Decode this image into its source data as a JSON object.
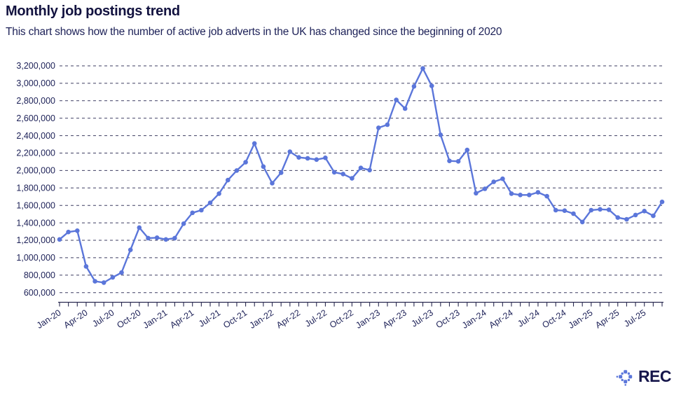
{
  "header": {
    "title": "Monthly job postings trend",
    "subtitle": "This chart shows how the number of active job adverts in the UK has changed since the beginning of 2020"
  },
  "logo": {
    "text": "REC",
    "icon": "rec-diamond-mark",
    "color": "#5B76DA",
    "text_color": "#15154A"
  },
  "colors": {
    "line": "#5B76DA",
    "point": "#5B76DA",
    "grid": "#3E3E62",
    "axis": "#2A2A50",
    "tick_label": "#1C2057",
    "title": "#12123F",
    "subtitle": "#1C2057",
    "background": "#FFFFFF"
  },
  "chart_data": {
    "type": "line",
    "title": "Monthly job postings trend",
    "xlabel": "",
    "ylabel": "",
    "legend": "none",
    "grid": "horizontal dashed",
    "ylim": [
      600000,
      3200000
    ],
    "y_tick_step": 200000,
    "y_tick_labels": [
      "600,000",
      "800,000",
      "1,000,000",
      "1,200,000",
      "1,400,000",
      "1,600,000",
      "1,800,000",
      "2,000,000",
      "2,200,000",
      "2,400,000",
      "2,600,000",
      "2,800,000",
      "3,000,000",
      "3,200,000"
    ],
    "x_label_every": 3,
    "x_labeled_ticks": [
      "Jan-20",
      "Apr-20",
      "Jul-20",
      "Oct-20",
      "Jan-21",
      "Apr-21",
      "Jul-21",
      "Oct-21",
      "Jan-22",
      "Apr-22",
      "Jul-22",
      "Oct-22",
      "Jan-23",
      "Apr-23",
      "Jul-23",
      "Oct-23",
      "Jan-24",
      "Apr-24",
      "Jul-24",
      "Oct-24",
      "Jan-25",
      "Apr-25",
      "Jul-25"
    ],
    "x": [
      "Jan-20",
      "Feb-20",
      "Mar-20",
      "Apr-20",
      "May-20",
      "Jun-20",
      "Jul-20",
      "Aug-20",
      "Sep-20",
      "Oct-20",
      "Nov-20",
      "Dec-20",
      "Jan-21",
      "Feb-21",
      "Mar-21",
      "Apr-21",
      "May-21",
      "Jun-21",
      "Jul-21",
      "Aug-21",
      "Sep-21",
      "Oct-21",
      "Nov-21",
      "Dec-21",
      "Jan-22",
      "Feb-22",
      "Mar-22",
      "Apr-22",
      "May-22",
      "Jun-22",
      "Jul-22",
      "Aug-22",
      "Sep-22",
      "Oct-22",
      "Nov-22",
      "Dec-22",
      "Jan-23",
      "Feb-23",
      "Mar-23",
      "Apr-23",
      "May-23",
      "Jun-23",
      "Jul-23",
      "Aug-23",
      "Sep-23",
      "Oct-23",
      "Nov-23",
      "Dec-23",
      "Jan-24",
      "Feb-24",
      "Mar-24",
      "Apr-24",
      "May-24",
      "Jun-24",
      "Jul-24",
      "Aug-24",
      "Sep-24",
      "Oct-24",
      "Nov-24",
      "Dec-24",
      "Jan-25",
      "Feb-25",
      "Mar-25",
      "Apr-25",
      "May-25",
      "Jun-25",
      "Jul-25",
      "Aug-25",
      "Sep-25"
    ],
    "values": [
      1210000,
      1295000,
      1310000,
      900000,
      730000,
      715000,
      775000,
      830000,
      1090000,
      1345000,
      1225000,
      1230000,
      1210000,
      1225000,
      1390000,
      1515000,
      1545000,
      1630000,
      1735000,
      1890000,
      2000000,
      2095000,
      2310000,
      2045000,
      1855000,
      1975000,
      2215000,
      2150000,
      2140000,
      2125000,
      2145000,
      1980000,
      1960000,
      1910000,
      2030000,
      2005000,
      2490000,
      2525000,
      2810000,
      2710000,
      2965000,
      3170000,
      2970000,
      2410000,
      2110000,
      2105000,
      2235000,
      1740000,
      1790000,
      1870000,
      1905000,
      1735000,
      1720000,
      1720000,
      1750000,
      1705000,
      1545000,
      1540000,
      1505000,
      1410000,
      1545000,
      1555000,
      1550000,
      1460000,
      1440000,
      1490000,
      1535000,
      1480000,
      1640000
    ]
  }
}
